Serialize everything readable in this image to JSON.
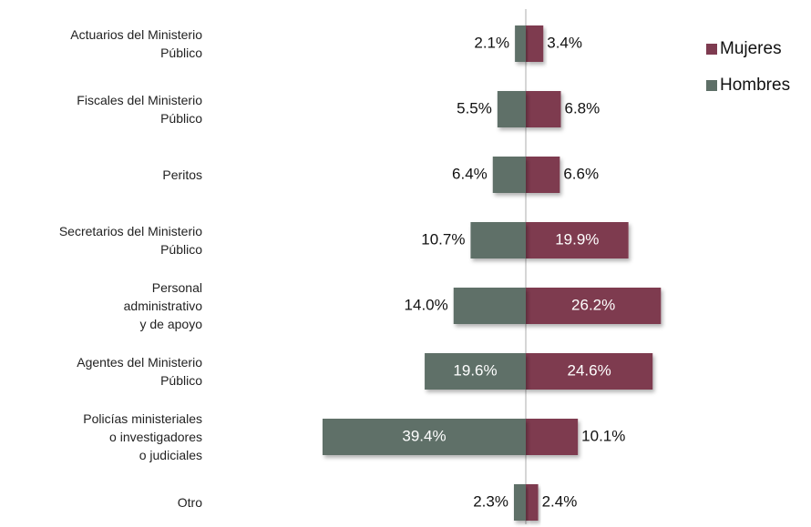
{
  "chart_data": {
    "type": "diverging-bar",
    "categories": [
      "Actuarios del Ministerio\nPúblico",
      "Fiscales del Ministerio\nPúblico",
      "Peritos",
      "Secretarios del Ministerio\nPúblico",
      "Personal\nadministrativo\ny de apoyo",
      "Agentes del Ministerio\nPúblico",
      "Policías ministeriales\no investigadores\no judiciales",
      "Otro"
    ],
    "series": [
      {
        "name": "Mujeres",
        "color": "#7e3b50",
        "side": "right",
        "values": [
          3.4,
          6.8,
          6.6,
          19.9,
          26.2,
          24.6,
          10.1,
          2.4
        ],
        "value_labels": [
          "3.4%",
          "6.8%",
          "6.6%",
          "19.9%",
          "26.2%",
          "24.6%",
          "10.1%",
          "2.4%"
        ]
      },
      {
        "name": "Hombres",
        "color": "#5e6f67",
        "side": "left",
        "values": [
          2.1,
          5.5,
          6.4,
          10.7,
          14.0,
          19.6,
          39.4,
          2.3
        ],
        "value_labels": [
          "2.1%",
          "5.5%",
          "6.4%",
          "10.7%",
          "14.0%",
          "19.6%",
          "39.4%",
          "2.3%"
        ]
      }
    ],
    "legend": "upper right"
  }
}
